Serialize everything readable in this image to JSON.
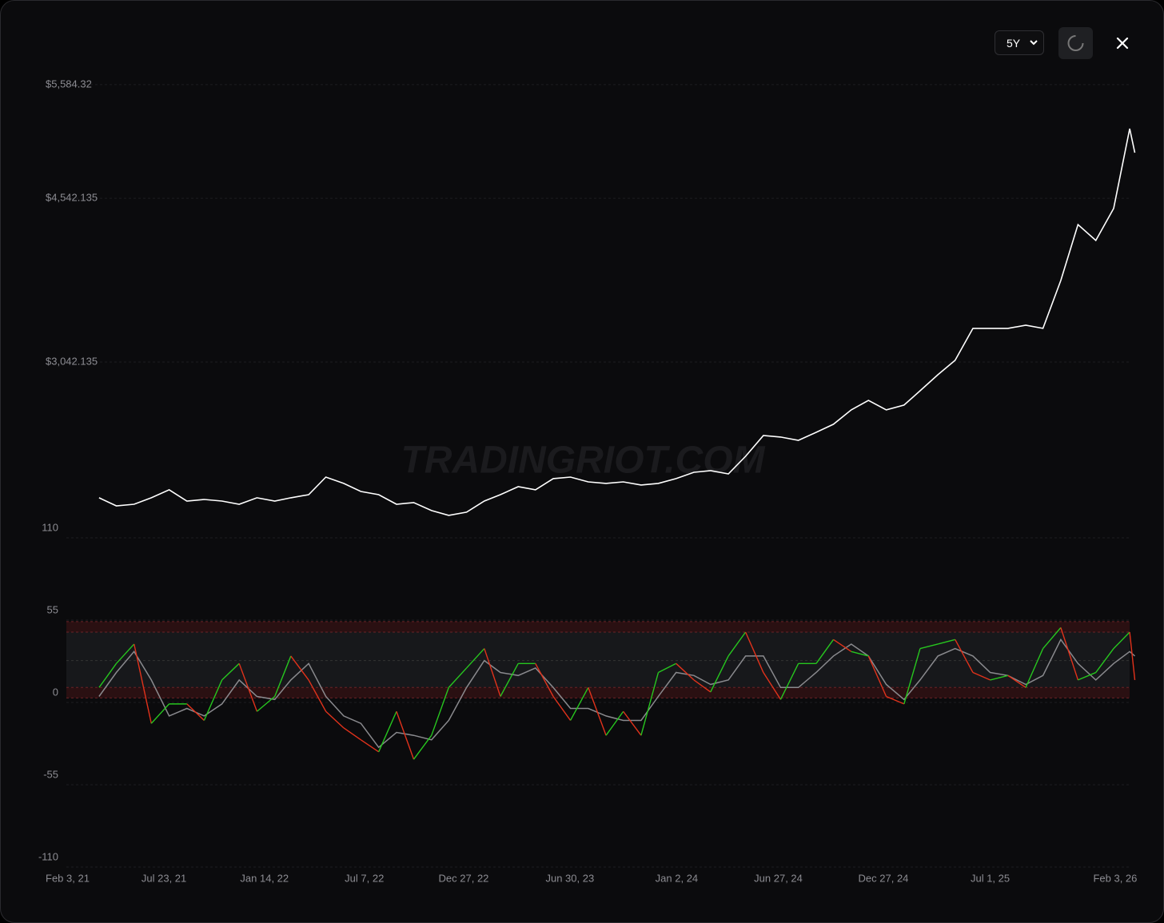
{
  "chart_data": {
    "type": "line",
    "range_select": "5Y",
    "watermark": "TRADINGRIOT.COM",
    "x": [
      "2021-04-01",
      "2021-05-01",
      "2021-06-01",
      "2021-07-01",
      "2021-08-01",
      "2021-09-01",
      "2021-10-01",
      "2021-11-01",
      "2021-12-01",
      "2022-01-01",
      "2022-02-01",
      "2022-03-01",
      "2022-04-01",
      "2022-05-01",
      "2022-06-01",
      "2022-07-01",
      "2022-08-01",
      "2022-09-01",
      "2022-10-01",
      "2022-11-01",
      "2022-12-01",
      "2023-01-01",
      "2023-02-01",
      "2023-03-01",
      "2023-04-01",
      "2023-05-01",
      "2023-06-01",
      "2023-07-01",
      "2023-08-01",
      "2023-09-01",
      "2023-10-01",
      "2023-11-01",
      "2023-12-01",
      "2024-01-01",
      "2024-02-01",
      "2024-03-01",
      "2024-04-01",
      "2024-05-01",
      "2024-06-01",
      "2024-07-01",
      "2024-08-01",
      "2024-09-01",
      "2024-10-01",
      "2024-11-01",
      "2024-12-01",
      "2025-01-01",
      "2025-02-01",
      "2025-03-01",
      "2025-04-01",
      "2025-05-01",
      "2025-06-01",
      "2025-07-01",
      "2025-08-01",
      "2025-09-01",
      "2025-10-01",
      "2025-11-01",
      "2025-12-01",
      "2026-01-01",
      "2026-02-01",
      "2026-03-01",
      "2026-03-10"
    ],
    "xlim": [
      "2021-02-03",
      "2026-03-19"
    ],
    "xticks": [
      {
        "value": "2021-02-03",
        "label": "Feb 3, 21"
      },
      {
        "value": "2021-07-23",
        "label": "Jul 23, 21"
      },
      {
        "value": "2022-01-14",
        "label": "Jan 14, 22"
      },
      {
        "value": "2022-07-07",
        "label": "Jul 7, 22"
      },
      {
        "value": "2022-12-27",
        "label": "Dec 27, 22"
      },
      {
        "value": "2023-06-30",
        "label": "Jun 30, 23"
      },
      {
        "value": "2024-01-02",
        "label": "Jan 2, 24"
      },
      {
        "value": "2024-06-27",
        "label": "Jun 27, 24"
      },
      {
        "value": "2024-12-27",
        "label": "Dec 27, 24"
      },
      {
        "value": "2025-07-01",
        "label": "Jul 1, 25"
      },
      {
        "value": "2026-02-03",
        "label": "Feb 3, 26"
      }
    ],
    "price": {
      "color": "#ffffff",
      "values": [
        1797,
        1723,
        1738,
        1797,
        1870,
        1767,
        1782,
        1767,
        1738,
        1797,
        1767,
        1797,
        1826,
        1987,
        1929,
        1855,
        1826,
        1738,
        1753,
        1680,
        1636,
        1665,
        1767,
        1826,
        1899,
        1870,
        1973,
        1987,
        1943,
        1929,
        1943,
        1914,
        1929,
        1973,
        2031,
        2046,
        2016,
        2177,
        2368,
        2354,
        2324,
        2397,
        2471,
        2603,
        2690,
        2603,
        2647,
        2778,
        2925,
        3057,
        3350,
        3350,
        3350,
        3379,
        3350,
        3789,
        4302,
        4156,
        4449,
        5181,
        4960
      ],
      "ylim": [
        1518,
        5657
      ],
      "yticks": [
        {
          "value": 5584.32,
          "label": "$5,584.32"
        },
        {
          "value": 4542.135,
          "label": "$4,542.135"
        },
        {
          "value": 3042.135,
          "label": "$3,042.135"
        }
      ]
    },
    "oscillator": {
      "up_color": "#27c61f",
      "down_color": "#e2321b",
      "signal_color": "#8a8a8e",
      "values": [
        10,
        26,
        39,
        -14,
        -1,
        -1,
        -12,
        15,
        26,
        -6,
        4,
        31,
        15,
        -6,
        -17,
        -25,
        -33,
        -6,
        -38,
        -22,
        10,
        23,
        36,
        4,
        26,
        26,
        4,
        -12,
        10,
        -22,
        -6,
        -22,
        20,
        26,
        15,
        7,
        31,
        47,
        20,
        2,
        26,
        26,
        42,
        34,
        31,
        4,
        -1,
        36,
        39,
        42,
        20,
        15,
        18,
        10,
        36,
        50,
        15,
        20,
        36,
        47,
        15
      ],
      "signal": [
        4,
        20,
        34,
        15,
        -9,
        -4,
        -9,
        -1,
        15,
        4,
        2,
        15,
        26,
        4,
        -9,
        -14,
        -30,
        -20,
        -22,
        -25,
        -12,
        10,
        28,
        20,
        18,
        23,
        10,
        -4,
        -4,
        -9,
        -12,
        -12,
        4,
        20,
        18,
        12,
        15,
        31,
        31,
        10,
        10,
        20,
        31,
        39,
        31,
        12,
        2,
        15,
        31,
        36,
        31,
        20,
        18,
        12,
        18,
        42,
        26,
        15,
        26,
        34,
        31
      ],
      "zones": {
        "upper": [
          47,
          54
        ],
        "lower": [
          3,
          10
        ],
        "mid": 28
      },
      "ylim": [
        -110,
        110
      ],
      "yticks": [
        110,
        55,
        0,
        -55,
        -110
      ]
    }
  }
}
